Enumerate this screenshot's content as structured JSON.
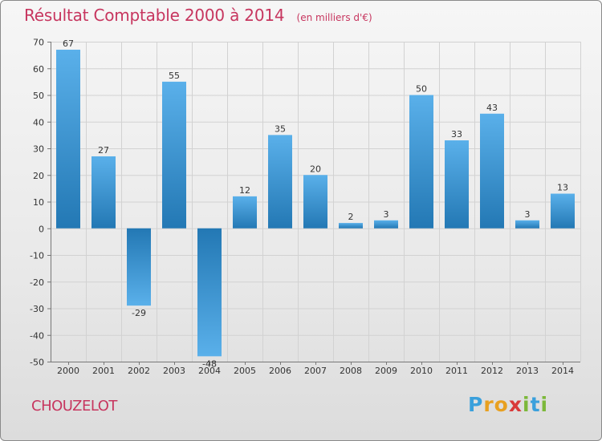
{
  "title": "Résultat Comptable 2000 à 2014",
  "subtitle": "(en milliers d'€)",
  "commune": "CHOUZELOT",
  "logo": {
    "text": "Proxiti",
    "letters": [
      {
        "char": "P",
        "color": "#3aa0dc"
      },
      {
        "char": "r",
        "color": "#e8a020"
      },
      {
        "char": "o",
        "color": "#e8a020"
      },
      {
        "char": "x",
        "color": "#d93a3a"
      },
      {
        "char": "i",
        "color": "#7cb83a"
      },
      {
        "char": "t",
        "color": "#3aa0dc"
      },
      {
        "char": "i",
        "color": "#7cb83a"
      }
    ]
  },
  "colors": {
    "title": "#c7365f",
    "bar_light": "#5ab0ea",
    "bar_dark": "#2378b4",
    "grid": "#d2d2d2",
    "axis": "#555555"
  },
  "chart_data": {
    "type": "bar",
    "title": "Résultat Comptable 2000 à 2014",
    "ylabel": "en milliers d'€",
    "xlabel": "",
    "categories": [
      "2000",
      "2001",
      "2002",
      "2003",
      "2004",
      "2005",
      "2006",
      "2007",
      "2008",
      "2009",
      "2010",
      "2011",
      "2012",
      "2013",
      "2014"
    ],
    "values": [
      67,
      27,
      -29,
      55,
      -48,
      12,
      35,
      20,
      2,
      3,
      50,
      33,
      43,
      3,
      13
    ],
    "value_labels": [
      "67",
      "27",
      "-29",
      "55",
      "-48",
      "12",
      "35",
      "20",
      "2",
      "3",
      "50",
      "33",
      "43",
      "3",
      "13"
    ],
    "ylim": [
      -50,
      70
    ],
    "yticks": [
      70,
      60,
      50,
      40,
      30,
      20,
      10,
      0,
      -10,
      -20,
      -30,
      -40,
      -50
    ],
    "grid": true,
    "legend": "none"
  }
}
